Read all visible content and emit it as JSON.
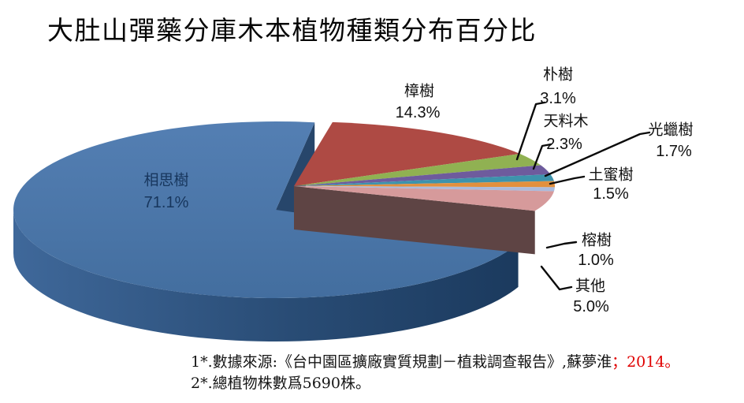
{
  "title": "大肚山彈藥分庫木本植物種類分布百分比",
  "chart_data": {
    "type": "pie",
    "style": "3d-exploded-pie",
    "title": "大肚山彈藥分庫木本植物種類分布百分比",
    "unit": "%",
    "legend_position": "none",
    "labels_on_chart": true,
    "slices": [
      {
        "label": "相思樹",
        "value": 71.1,
        "color": "#4B77AC"
      },
      {
        "label": "樟樹",
        "value": 14.3,
        "color": "#AE4A44"
      },
      {
        "label": "朴樹",
        "value": 3.1,
        "color": "#90B152"
      },
      {
        "label": "天料木",
        "value": 2.3,
        "color": "#6E5B9D"
      },
      {
        "label": "光蠟樹",
        "value": 1.7,
        "color": "#3D93AC"
      },
      {
        "label": "土蜜樹",
        "value": 1.5,
        "color": "#E2903E"
      },
      {
        "label": "榕樹",
        "value": 1.0,
        "color": "#ABBBDC"
      },
      {
        "label": "其他",
        "value": 5.0,
        "color": "#D69A9B"
      }
    ]
  },
  "footnotes": {
    "line1": "1*.數據來源:《台中園區擴廠實質規劃－植栽調查報告》,蘇夢淮",
    "line1_highlight": "；2014。",
    "highlight_color": "#E00000",
    "line2": "2*.總植物株數爲5690株。"
  }
}
